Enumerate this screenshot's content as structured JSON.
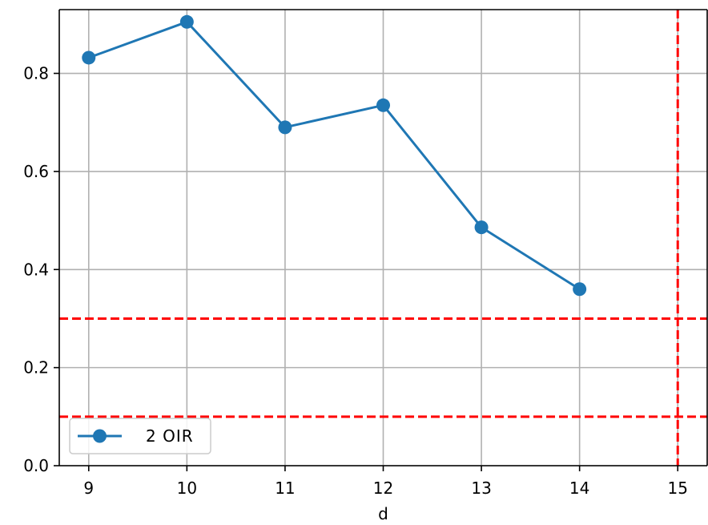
{
  "chart_data": {
    "type": "line",
    "title": "",
    "xlabel": "d",
    "ylabel": "",
    "xlim": [
      8.7,
      15.3
    ],
    "ylim": [
      0.0,
      0.93
    ],
    "x_ticks": [
      9,
      10,
      11,
      12,
      13,
      14,
      15
    ],
    "x_tick_labels": [
      "9",
      "10",
      "11",
      "12",
      "13",
      "14",
      "15"
    ],
    "y_ticks": [
      0.0,
      0.2,
      0.4,
      0.6,
      0.8
    ],
    "y_tick_labels": [
      "0.0",
      "0.2",
      "0.4",
      "0.6",
      "0.8"
    ],
    "grid": true,
    "legend_position": "lower-left",
    "series": [
      {
        "name": "2 OIR",
        "color": "#1f77b4",
        "marker": "circle",
        "x": [
          9,
          10,
          11,
          12,
          13,
          14
        ],
        "y": [
          0.832,
          0.905,
          0.69,
          0.735,
          0.486,
          0.36
        ]
      }
    ],
    "reference_lines": [
      {
        "orientation": "horizontal",
        "value": 0.3,
        "color": "#ff0000",
        "style": "dashed"
      },
      {
        "orientation": "horizontal",
        "value": 0.1,
        "color": "#ff0000",
        "style": "dashed"
      },
      {
        "orientation": "vertical",
        "value": 15,
        "color": "#ff0000",
        "style": "dashed"
      }
    ]
  }
}
